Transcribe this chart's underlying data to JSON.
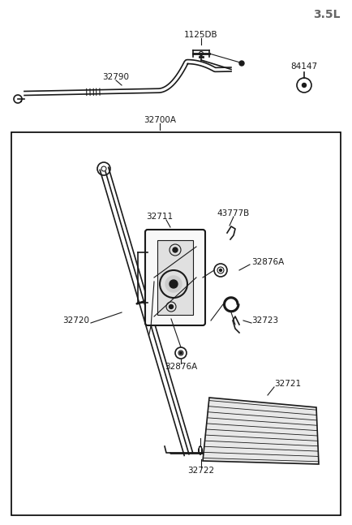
{
  "title": "3.5L",
  "bg_color": "#ffffff",
  "line_color": "#1a1a1a",
  "box_color": "#000000",
  "labels": {
    "title": "3.5L",
    "cable_label": "32790",
    "clip_label": "1125DB",
    "grommet_label": "84147",
    "cable_assembly_label": "32700A",
    "pedal_arm_label": "32720",
    "bracket_label": "32711",
    "spring_clip_label": "43777B",
    "bolt1_label": "32876A",
    "bolt2_label": "32876A",
    "spring_label": "32723",
    "pedal_label": "32721",
    "pedal_spring_label": "32722"
  }
}
